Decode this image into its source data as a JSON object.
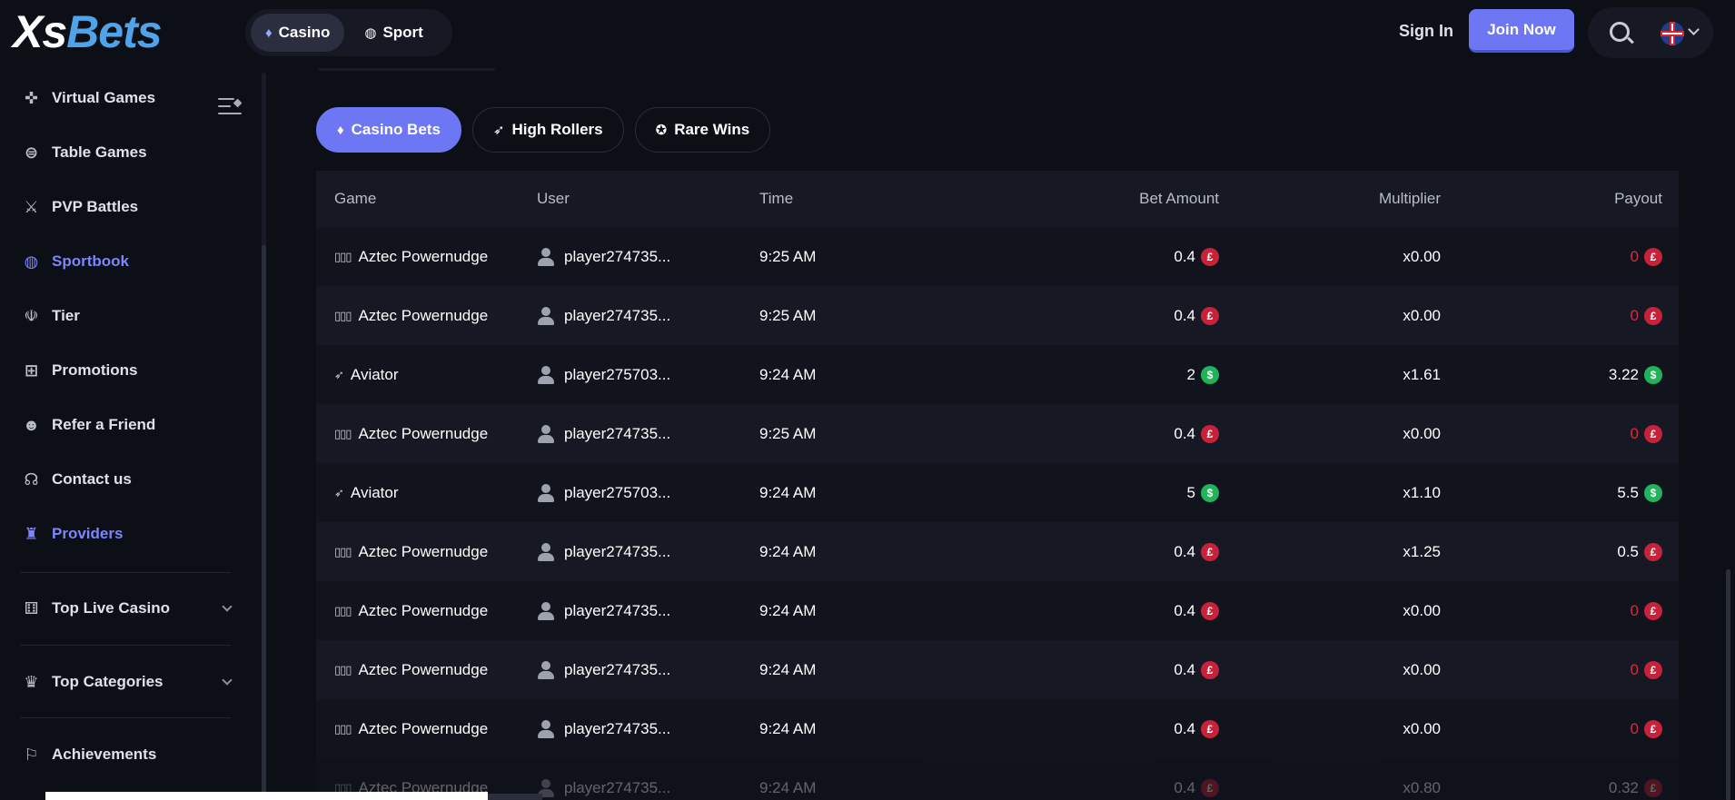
{
  "brand": {
    "logo_part1": "Xs",
    "logo_part2": "Bets"
  },
  "topnav": {
    "casino": "Casino",
    "sport": "Sport"
  },
  "header": {
    "sign_in": "Sign In",
    "join_now": "Join Now"
  },
  "sidebar": {
    "items": [
      {
        "label": "Virtual Games",
        "icon": "gamepad-icon"
      },
      {
        "label": "Table Games",
        "icon": "table-icon"
      },
      {
        "label": "PVP Battles",
        "icon": "swords-icon"
      },
      {
        "label": "Sportbook",
        "icon": "basketball-icon"
      },
      {
        "label": "Tier",
        "icon": "medal-icon"
      },
      {
        "label": "Promotions",
        "icon": "gift-icon"
      },
      {
        "label": "Refer a Friend",
        "icon": "refer-icon"
      },
      {
        "label": "Contact us",
        "icon": "headset-icon"
      },
      {
        "label": "Providers",
        "icon": "providers-icon"
      },
      {
        "label": "Top Live Casino",
        "icon": "live-casino-icon"
      },
      {
        "label": "Top Categories",
        "icon": "crown-icon"
      },
      {
        "label": "Achievements",
        "icon": "achievement-icon"
      }
    ]
  },
  "tabs": {
    "casino_bets": "Casino Bets",
    "high_rollers": "High Rollers",
    "rare_wins": "Rare Wins"
  },
  "table": {
    "headers": {
      "game": "Game",
      "user": "User",
      "time": "Time",
      "bet": "Bet Amount",
      "multiplier": "Multiplier",
      "payout": "Payout"
    },
    "rows": [
      {
        "game": "Aztec Powernudge",
        "user": "player274735...",
        "time": "9:25 AM",
        "bet": "0.4",
        "multiplier": "x0.00",
        "payout": "0"
      },
      {
        "game": "Aztec Powernudge",
        "user": "player274735...",
        "time": "9:25 AM",
        "bet": "0.4",
        "multiplier": "x0.00",
        "payout": "0"
      },
      {
        "game": "Aviator",
        "user": "player275703...",
        "time": "9:24 AM",
        "bet": "2",
        "multiplier": "x1.61",
        "payout": "3.22"
      },
      {
        "game": "Aztec Powernudge",
        "user": "player274735...",
        "time": "9:25 AM",
        "bet": "0.4",
        "multiplier": "x0.00",
        "payout": "0"
      },
      {
        "game": "Aviator",
        "user": "player275703...",
        "time": "9:24 AM",
        "bet": "5",
        "multiplier": "x1.10",
        "payout": "5.5"
      },
      {
        "game": "Aztec Powernudge",
        "user": "player274735...",
        "time": "9:24 AM",
        "bet": "0.4",
        "multiplier": "x1.25",
        "payout": "0.5"
      },
      {
        "game": "Aztec Powernudge",
        "user": "player274735...",
        "time": "9:24 AM",
        "bet": "0.4",
        "multiplier": "x0.00",
        "payout": "0"
      },
      {
        "game": "Aztec Powernudge",
        "user": "player274735...",
        "time": "9:24 AM",
        "bet": "0.4",
        "multiplier": "x0.00",
        "payout": "0"
      },
      {
        "game": "Aztec Powernudge",
        "user": "player274735...",
        "time": "9:24 AM",
        "bet": "0.4",
        "multiplier": "x0.00",
        "payout": "0"
      },
      {
        "game": "Aztec Powernudge",
        "user": "player274735...",
        "time": "9:24 AM",
        "bet": "0.4",
        "multiplier": "x0.80",
        "payout": "0.32"
      }
    ]
  },
  "currency": {
    "gbp_symbol": "£",
    "usd_symbol": "$",
    "gbp_color": "#c8223a",
    "usd_color": "#20b35a"
  },
  "colors": {
    "accent": "#6d77f3",
    "sidebar_accent": "#7c86f8",
    "loss": "#d8283f"
  }
}
